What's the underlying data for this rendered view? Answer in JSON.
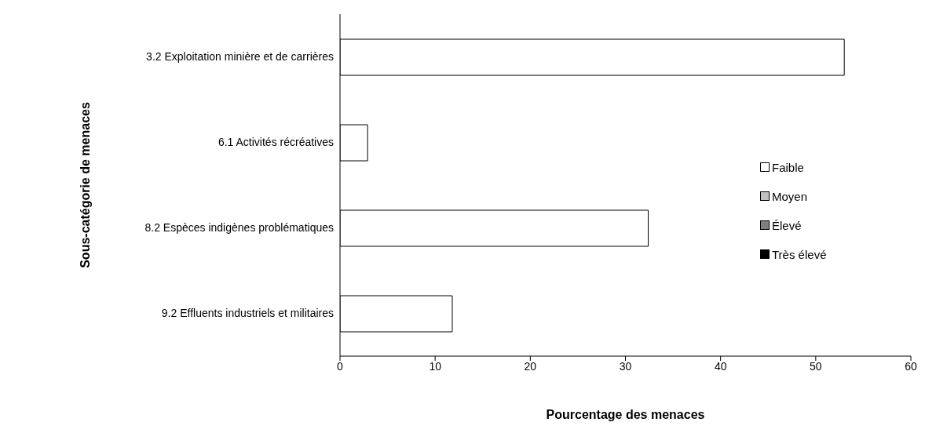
{
  "chart_data": {
    "type": "bar",
    "orientation": "horizontal",
    "stacked": true,
    "xlabel": "Pourcentage des menaces",
    "ylabel": "Sous-catégorie de menaces",
    "categories": [
      "3.2 Exploitation minière et de carrières",
      "6.1 Activités récréatives",
      "8.2 Espèces indigènes problématiques",
      "9.2 Effluents industriels et militaires"
    ],
    "series": [
      {
        "name": "Faible",
        "color": "#ffffff",
        "values": [
          53,
          2.9,
          32.4,
          11.8
        ]
      },
      {
        "name": "Moyen",
        "color": "#c0c0c0",
        "values": [
          null,
          null,
          null,
          null
        ]
      },
      {
        "name": "Élevé",
        "color": "#808080",
        "values": [
          null,
          null,
          null,
          null
        ]
      },
      {
        "name": "Très élevé",
        "color": "#000000",
        "values": [
          null,
          null,
          null,
          null
        ]
      }
    ],
    "xlim": [
      0,
      60
    ],
    "xticks": [
      0,
      10,
      20,
      30,
      40,
      50,
      60
    ],
    "grid": false,
    "legend": "right"
  }
}
